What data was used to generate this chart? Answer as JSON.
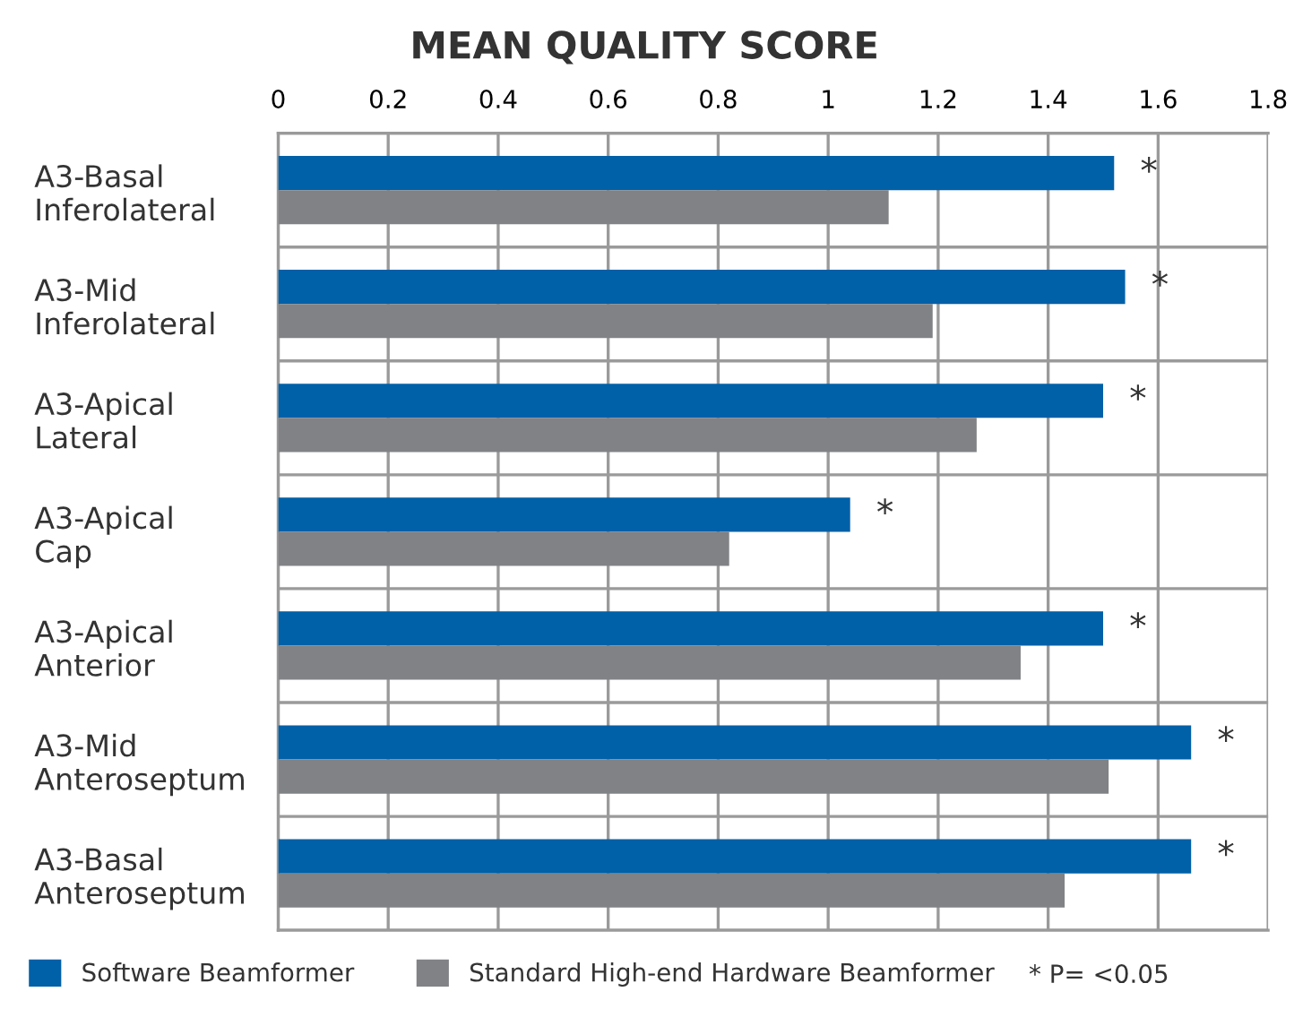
{
  "chart_data": {
    "type": "bar",
    "orientation": "horizontal",
    "title": "MEAN QUALITY SCORE",
    "categories": [
      "A3-Basal\nInferolateral",
      "A3-Mid\nInferolateral",
      "A3-Apical\nLateral",
      "A3-Apical\nCap",
      "A3-Apical\nAnterior",
      "A3-Mid\nAnteroseptum",
      "A3-Basal\nAnteroseptum"
    ],
    "series": [
      {
        "name": "Software Beamformer",
        "color": "#0060a8",
        "values": [
          1.52,
          1.54,
          1.5,
          1.04,
          1.5,
          1.66,
          1.66
        ]
      },
      {
        "name": "Standard High-end Hardware Beamformer",
        "color": "#808285",
        "values": [
          1.11,
          1.19,
          1.27,
          0.82,
          1.35,
          1.51,
          1.43
        ]
      }
    ],
    "xlim": [
      0,
      1.8
    ],
    "xticks": [
      0,
      0.2,
      0.4,
      0.6,
      0.8,
      1,
      1.2,
      1.4,
      1.6,
      1.8
    ],
    "grid": true,
    "legend": "bottom",
    "annotations": [
      "*",
      "*",
      "*",
      "*",
      "*",
      "*",
      "*",
      "* P= <0.05"
    ]
  }
}
